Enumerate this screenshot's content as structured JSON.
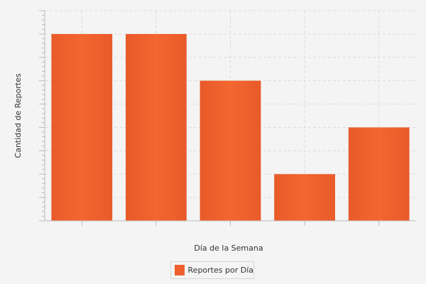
{
  "chart_data": {
    "type": "bar",
    "title": "",
    "xlabel": "Día de la Semana",
    "ylabel": "Cantidad de Reportes",
    "categories": [
      "",
      "",
      "",
      "",
      ""
    ],
    "series": [
      {
        "name": "Reportes por Día",
        "values": [
          8,
          8,
          6,
          2,
          4
        ]
      }
    ],
    "ylim": [
      0,
      9
    ],
    "grid": true,
    "legend_position": "bottom-center",
    "colors": {
      "bar": "#f0602f",
      "grid": "#dcdcdc",
      "axis": "#bbbbbb",
      "background": "#f4f4f4"
    }
  }
}
